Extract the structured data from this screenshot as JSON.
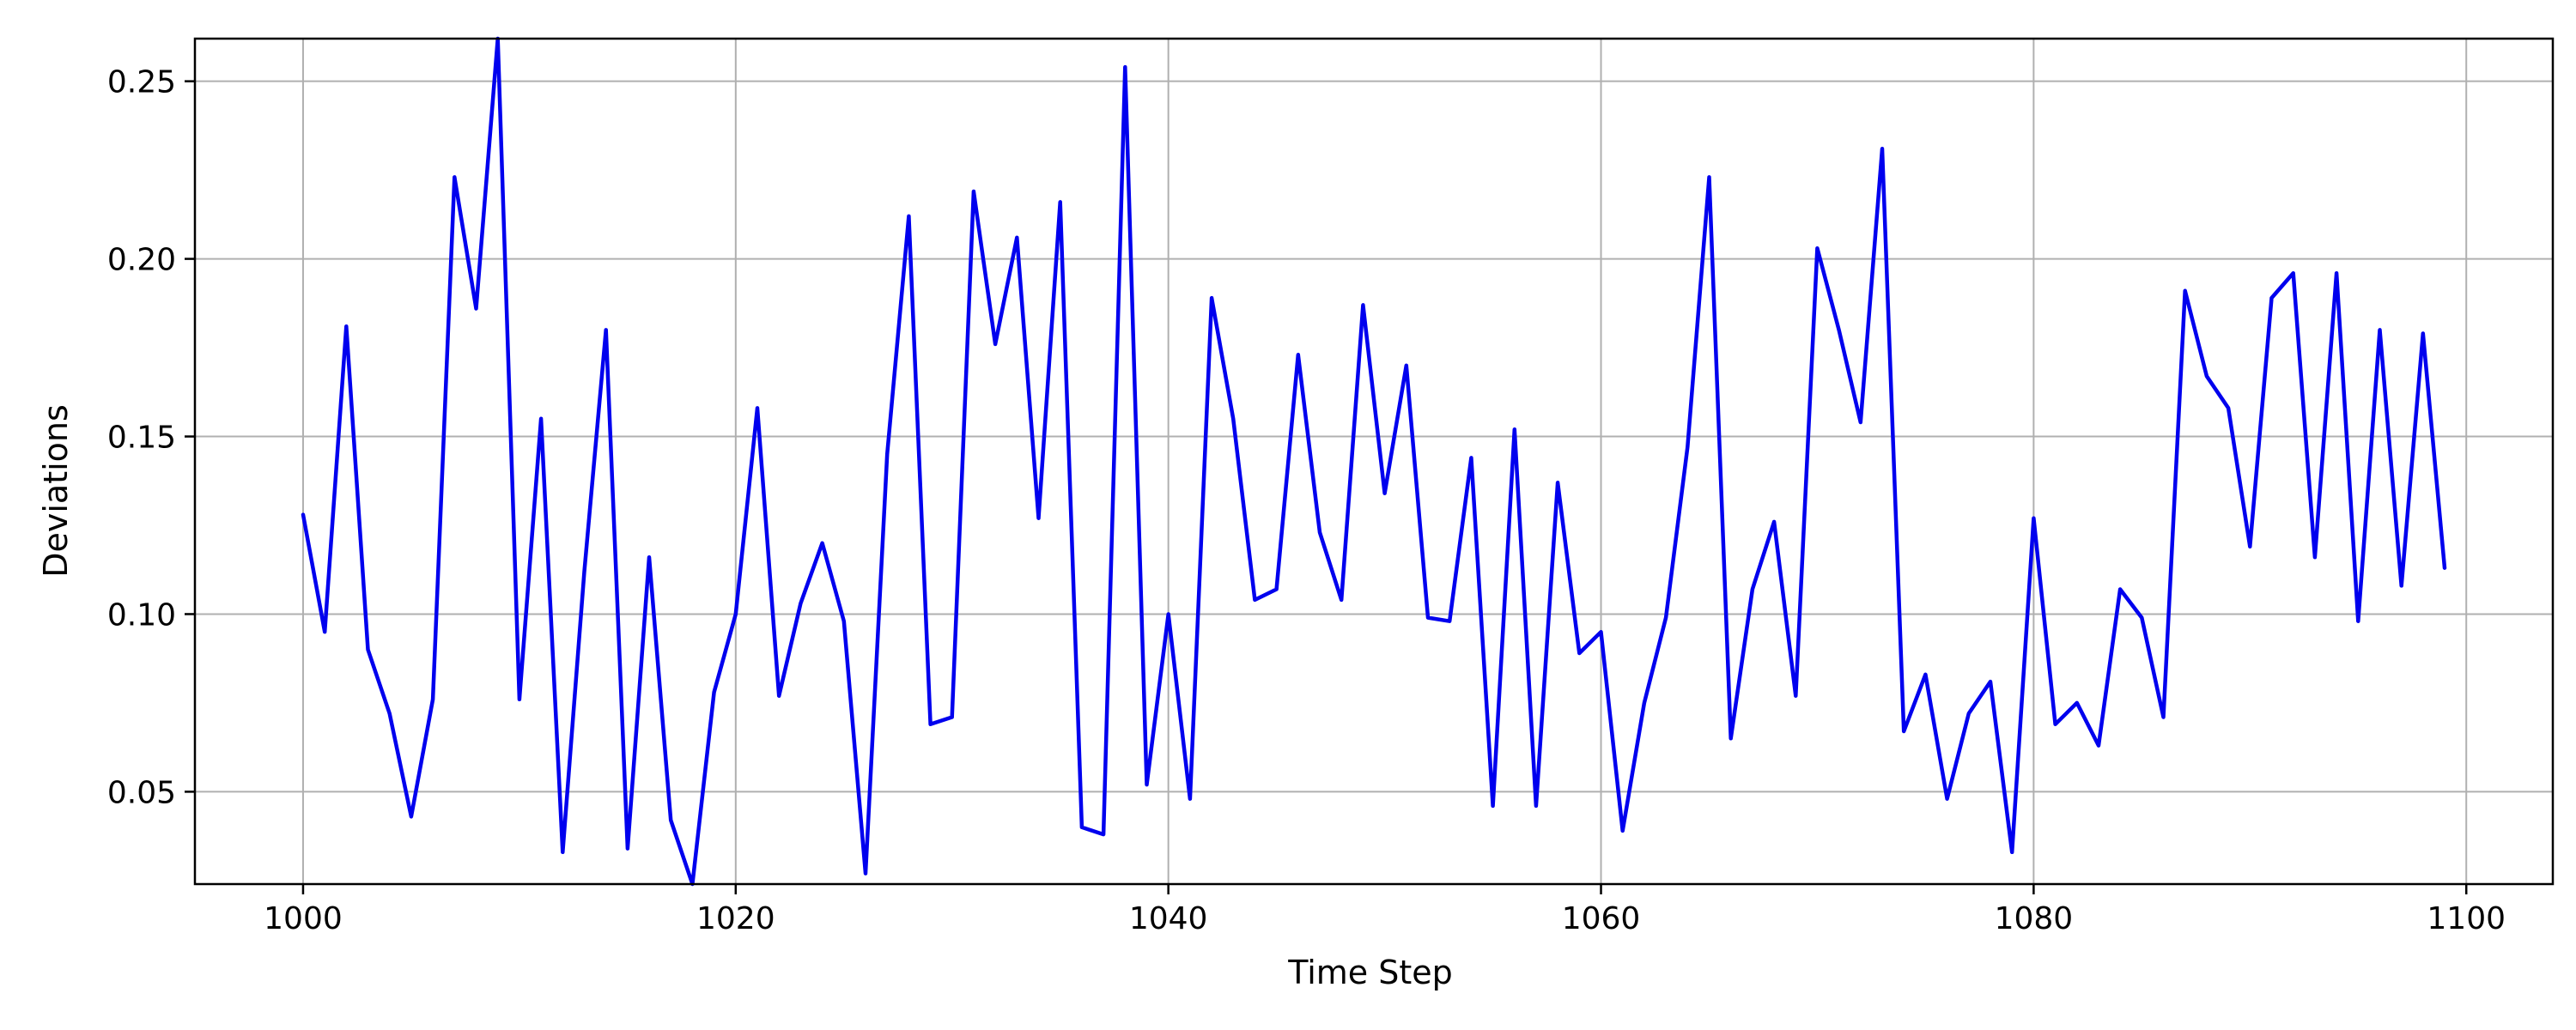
{
  "chart_data": {
    "type": "line",
    "title": "",
    "xlabel": "Time Step",
    "ylabel": "Deviations",
    "xlim": [
      995,
      1104
    ],
    "ylim": [
      0.024,
      0.262
    ],
    "xticks": [
      1000,
      1020,
      1040,
      1060,
      1080,
      1100
    ],
    "yticks": [
      0.05,
      0.1,
      0.15,
      0.2,
      0.25
    ],
    "ytick_labels": [
      "0.05",
      "0.10",
      "0.15",
      "0.20",
      "0.25"
    ],
    "grid": true,
    "legend": "none",
    "line_color": "#0000ee",
    "series": [
      {
        "x_start": 1000,
        "x_step": 1,
        "values": [
          0.128,
          0.095,
          0.181,
          0.09,
          0.072,
          0.043,
          0.076,
          0.223,
          0.186,
          0.262,
          0.076,
          0.155,
          0.033,
          0.112,
          0.18,
          0.034,
          0.116,
          0.042,
          0.024,
          0.078,
          0.1,
          0.158,
          0.077,
          0.103,
          0.12,
          0.098,
          0.027,
          0.145,
          0.212,
          0.069,
          0.071,
          0.219,
          0.176,
          0.206,
          0.127,
          0.216,
          0.04,
          0.038,
          0.254,
          0.052,
          0.1,
          0.048,
          0.189,
          0.155,
          0.104,
          0.107,
          0.173,
          0.123,
          0.104,
          0.187,
          0.134,
          0.17,
          0.099,
          0.098,
          0.144,
          0.046,
          0.152,
          0.046,
          0.137,
          0.089,
          0.095,
          0.039,
          0.075,
          0.099,
          0.147,
          0.223,
          0.065,
          0.107,
          0.126,
          0.077,
          0.203,
          0.18,
          0.154,
          0.231,
          0.067,
          0.083,
          0.048,
          0.072,
          0.081,
          0.033,
          0.127,
          0.069,
          0.075,
          0.063,
          0.107,
          0.099,
          0.071,
          0.191,
          0.167,
          0.158,
          0.119,
          0.189,
          0.196,
          0.116,
          0.196,
          0.098,
          0.18,
          0.108,
          0.179,
          0.113
        ]
      }
    ]
  }
}
